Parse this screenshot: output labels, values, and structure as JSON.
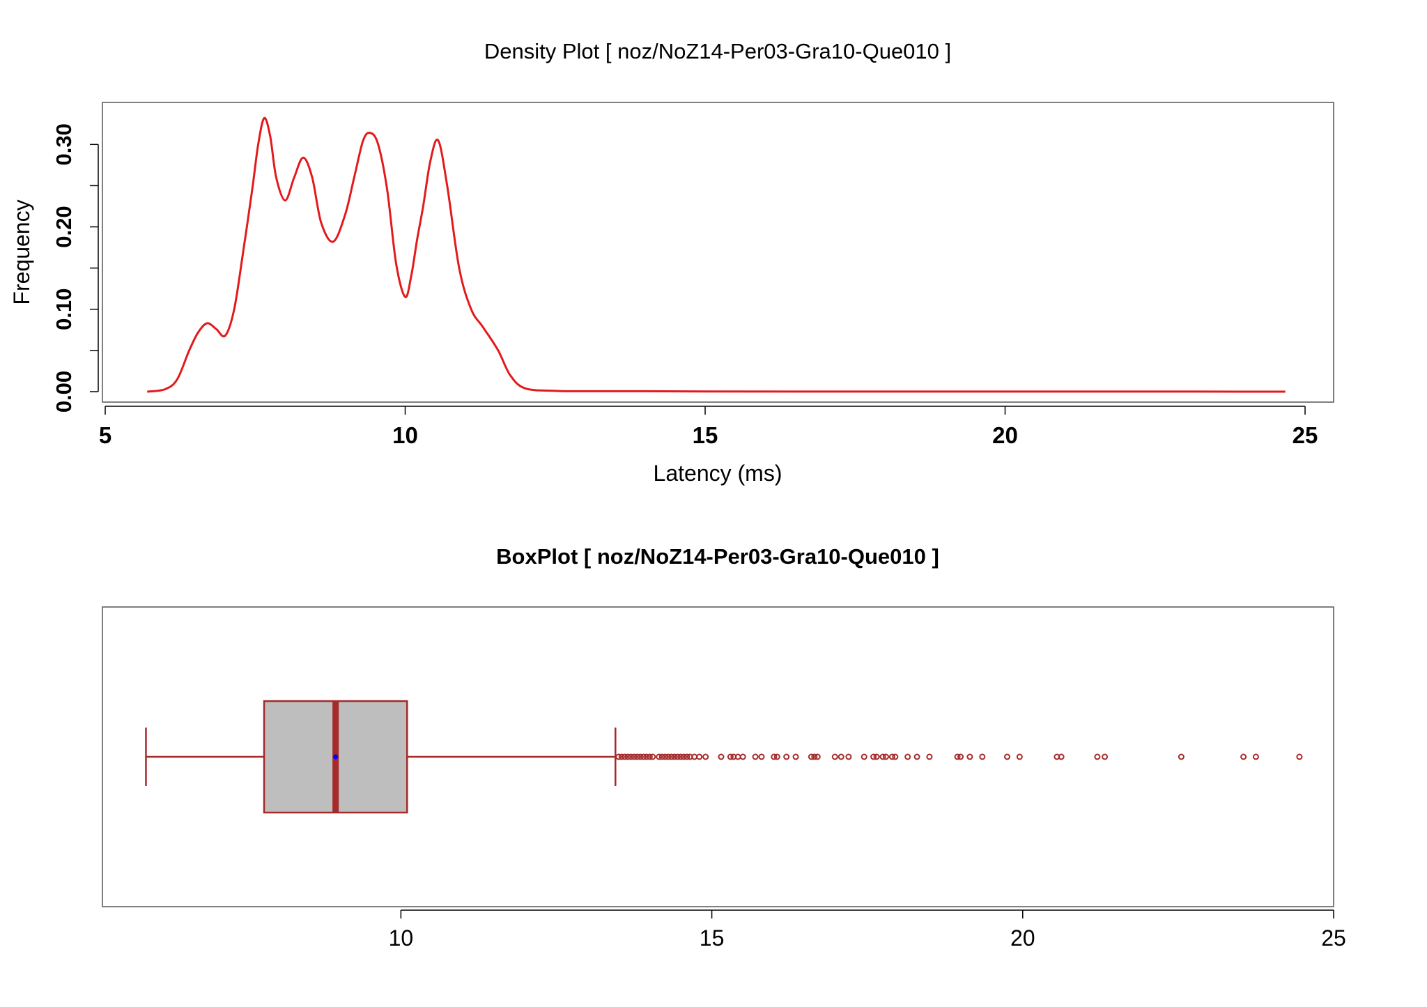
{
  "chart_data": [
    {
      "type": "line",
      "title": "Density Plot [ noz/NoZ14-Per03-Gra10-Que010 ]",
      "xlabel": "Latency (ms)",
      "ylabel": "Frequency",
      "xlim": [
        5,
        25
      ],
      "ylim": [
        0,
        0.34
      ],
      "xticks": [
        5,
        10,
        15,
        20,
        25
      ],
      "xtick_labels": [
        "5",
        "10",
        "15",
        "20",
        "25"
      ],
      "yticks": [
        0.0,
        0.05,
        0.1,
        0.15,
        0.2,
        0.25,
        0.3
      ],
      "ytick_labels": [
        "0.00",
        "",
        "0.10",
        "",
        "0.20",
        "",
        "0.30"
      ],
      "line_color": "#e31a1c",
      "grid": false,
      "series": [
        {
          "x": [
            5.7,
            6.0,
            6.2,
            6.4,
            6.55,
            6.7,
            6.85,
            7.0,
            7.15,
            7.3,
            7.45,
            7.55,
            7.65,
            7.75,
            7.85,
            8.0,
            8.15,
            8.3,
            8.45,
            8.6,
            8.8,
            9.0,
            9.15,
            9.3,
            9.42,
            9.55,
            9.7,
            9.85,
            10.0,
            10.1,
            10.2,
            10.3,
            10.42,
            10.55,
            10.7,
            10.9,
            11.1,
            11.3,
            11.55,
            11.75,
            12.0,
            12.5,
            13.0,
            14.0,
            15.0,
            17.0,
            20.0,
            22.0,
            24.67
          ],
          "y": [
            0.0,
            0.003,
            0.015,
            0.05,
            0.072,
            0.083,
            0.076,
            0.068,
            0.1,
            0.17,
            0.245,
            0.3,
            0.332,
            0.31,
            0.26,
            0.232,
            0.26,
            0.284,
            0.26,
            0.205,
            0.182,
            0.215,
            0.26,
            0.305,
            0.314,
            0.3,
            0.245,
            0.155,
            0.115,
            0.14,
            0.185,
            0.225,
            0.28,
            0.305,
            0.25,
            0.15,
            0.1,
            0.078,
            0.05,
            0.02,
            0.004,
            0.001,
            0.0005,
            0.0005,
            0.0002,
            0.0001,
            0.0001,
            0.0001,
            0.0
          ]
        }
      ]
    },
    {
      "type": "box",
      "title": "BoxPlot [ noz/NoZ14-Per03-Gra10-Que010 ]",
      "xlim": [
        5.2,
        25.0
      ],
      "xticks": [
        10,
        15,
        20,
        25
      ],
      "xtick_labels": [
        "10",
        "15",
        "20",
        "25"
      ],
      "box_color": "#a52a2a",
      "box_fill": "#bebebe",
      "mean_color": "#0000ff",
      "whisker_low": 5.9,
      "q1": 7.8,
      "median": 8.95,
      "q3": 10.1,
      "whisker_high": 13.45,
      "mean": 8.95,
      "outliers": [
        13.5,
        13.55,
        13.6,
        13.65,
        13.7,
        13.75,
        13.8,
        13.85,
        13.9,
        13.95,
        14.0,
        14.05,
        14.15,
        14.2,
        14.25,
        14.3,
        14.35,
        14.4,
        14.45,
        14.5,
        14.55,
        14.6,
        14.65,
        14.72,
        14.8,
        14.9,
        15.15,
        15.3,
        15.35,
        15.42,
        15.5,
        15.7,
        15.8,
        16.0,
        16.05,
        16.2,
        16.35,
        16.6,
        16.65,
        16.7,
        16.98,
        17.08,
        17.2,
        17.45,
        17.6,
        17.65,
        17.75,
        17.8,
        17.9,
        17.95,
        18.15,
        18.3,
        18.5,
        18.95,
        19.0,
        19.15,
        19.35,
        19.75,
        19.95,
        20.55,
        20.62,
        21.2,
        21.32,
        22.55,
        23.55,
        23.75,
        24.45
      ]
    }
  ]
}
